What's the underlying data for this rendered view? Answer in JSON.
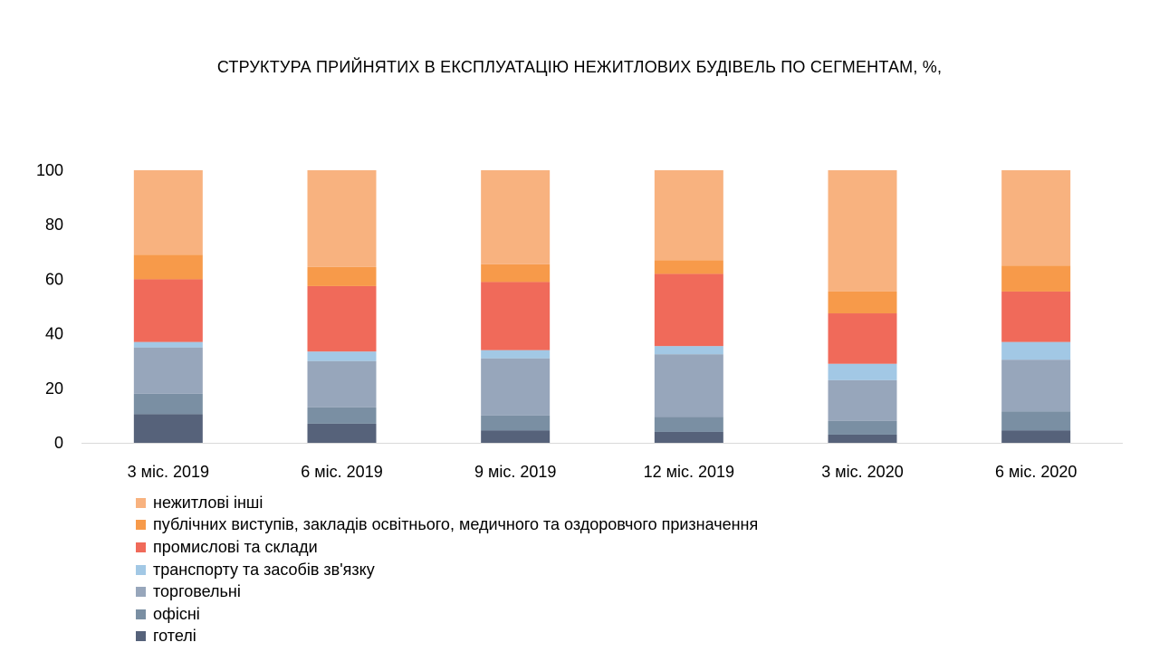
{
  "chart_data": {
    "type": "bar",
    "stacked": true,
    "title": "СТРУКТУРА ПРИЙНЯТИХ В ЕКСПЛУАТАЦІЮ НЕЖИТЛОВИХ БУДІВЕЛЬ ПО СЕГМЕНТАМ, %,",
    "xlabel": "",
    "ylabel": "",
    "ylim": [
      0,
      100
    ],
    "yticks": [
      "0",
      "20",
      "40",
      "60",
      "80",
      "100"
    ],
    "grid": false,
    "legend_position": "bottom-left",
    "categories": [
      "3 міс. 2019",
      "6 міс. 2019",
      "9 міс. 2019",
      "12 міс. 2019",
      "3 міс. 2020",
      "6 міс. 2020"
    ],
    "series": [
      {
        "name": "готелі",
        "color": "#56627a",
        "values": [
          10.5,
          7,
          4.5,
          4,
          3,
          4.5
        ]
      },
      {
        "name": "офісні",
        "color": "#7a8fa3",
        "values": [
          7.5,
          6,
          5.5,
          5.5,
          5,
          7
        ]
      },
      {
        "name": "торговельні",
        "color": "#97a6bb",
        "values": [
          17,
          17,
          21,
          23,
          15,
          19
        ]
      },
      {
        "name": "транспорту та засобів зв'язку",
        "color": "#a2c8e5",
        "values": [
          2,
          3.5,
          3,
          3,
          6,
          6.5
        ]
      },
      {
        "name": "промислові та склади",
        "color": "#f06a5a",
        "values": [
          23,
          24,
          25,
          26.5,
          18.5,
          18.5
        ]
      },
      {
        "name": "публічних виступів, закладів освітнього, медичного та оздоровчого призначення",
        "color": "#f79a4a",
        "values": [
          9,
          7,
          6.5,
          5,
          8,
          9.5
        ]
      },
      {
        "name": "нежитлові інші",
        "color": "#f8b27f",
        "values": [
          31,
          35.5,
          34.5,
          33,
          44.5,
          35
        ]
      }
    ]
  }
}
